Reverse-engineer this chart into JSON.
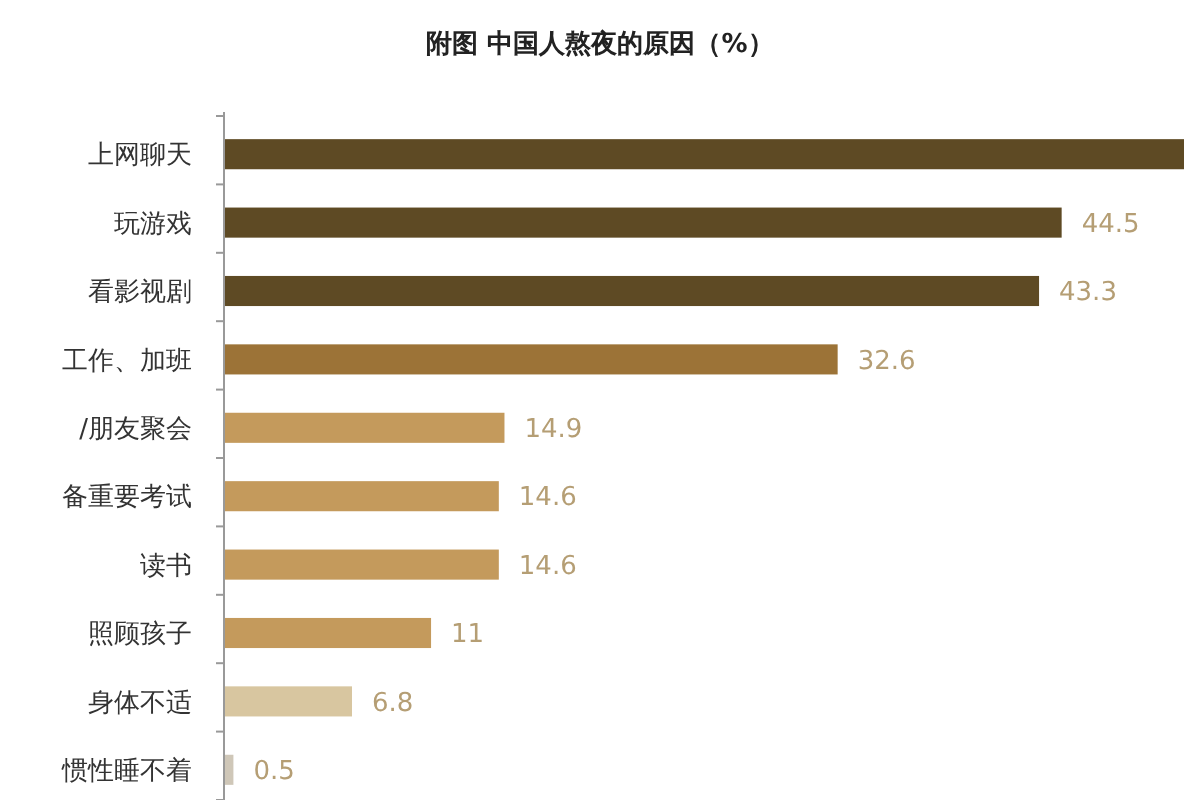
{
  "chart_data": {
    "type": "bar",
    "orientation": "horizontal",
    "title": "附图  中国人熬夜的原因（%）",
    "categories": [
      "上网聊天",
      "玩游戏",
      "看影视剧",
      "工作、加班",
      "/朋友聚会",
      "备重要考试",
      "读书",
      "照顾孩子",
      "身体不适",
      "惯性睡不着"
    ],
    "values": [
      51,
      44.5,
      43.3,
      32.6,
      14.9,
      14.6,
      14.6,
      11,
      6.8,
      0.5
    ],
    "value_labels": [
      null,
      "44.5",
      "43.3",
      "32.6",
      "14.9",
      "14.6",
      "14.6",
      "11",
      "6.8",
      "0.5"
    ],
    "colors": [
      "#5e4a24",
      "#5e4a24",
      "#5e4a24",
      "#9c7337",
      "#c49a5c",
      "#c49a5c",
      "#c49a5c",
      "#c49a5c",
      "#d8c6a0",
      "#cfc7b8"
    ]
  }
}
